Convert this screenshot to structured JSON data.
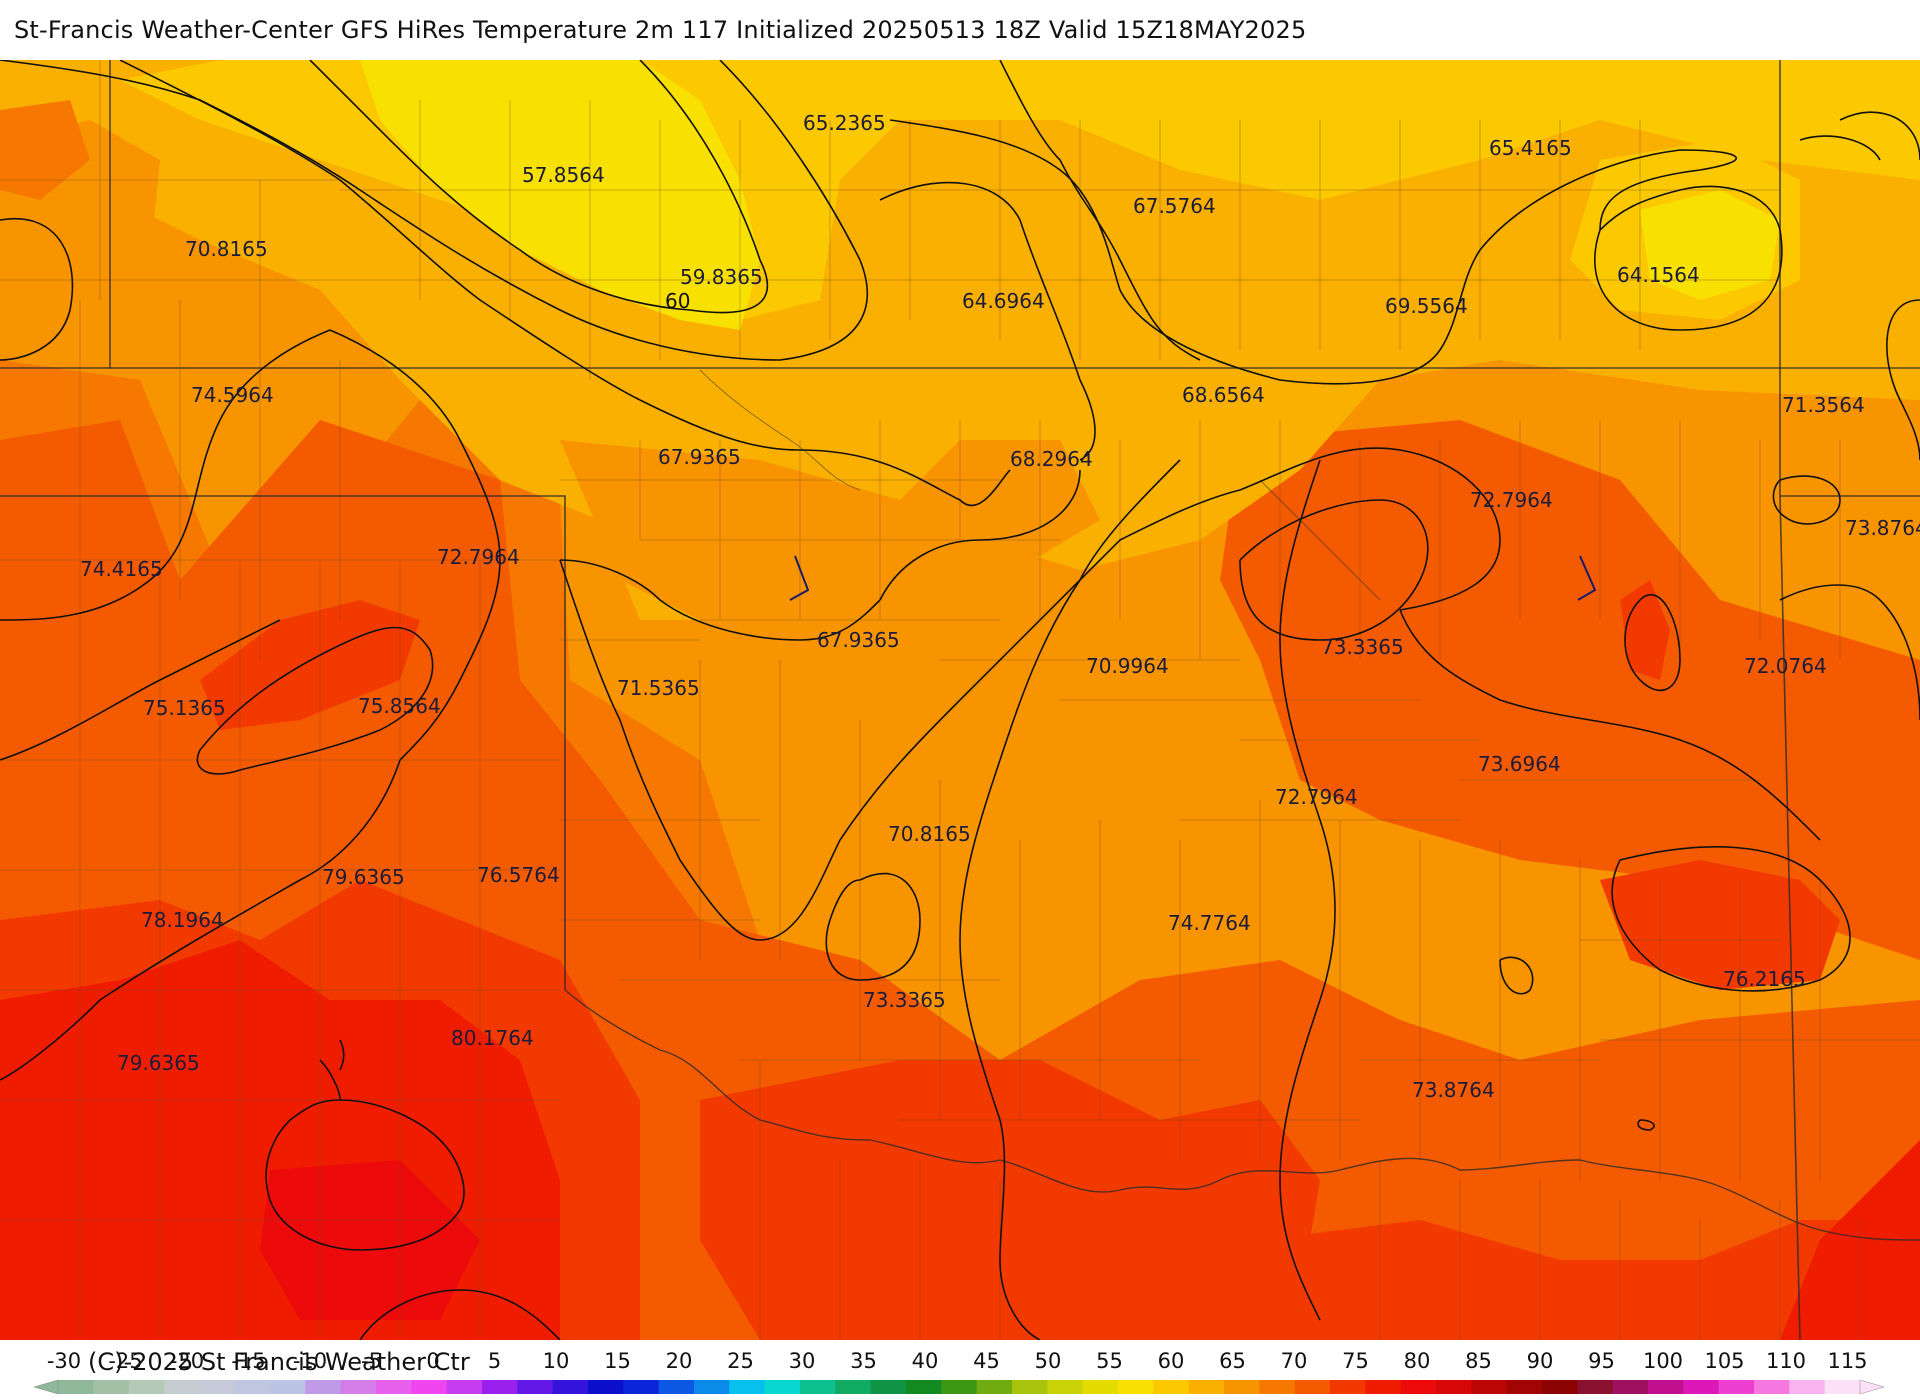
{
  "title": "St-Francis Weather-Center GFS HiRes Temperature 2m  117 Initialized 20250513 18Z Valid 15Z18MAY2025",
  "copyright": "(C)-2025 St Francis Weather Ctr",
  "map": {
    "contour_label": "60",
    "point_values": [
      {
        "id": "p1",
        "value": "57.8564"
      },
      {
        "id": "p2",
        "value": "65.2365"
      },
      {
        "id": "p3",
        "value": "65.4165"
      },
      {
        "id": "p4",
        "value": "70.8165"
      },
      {
        "id": "p5",
        "value": "67.5764"
      },
      {
        "id": "p6",
        "value": "59.8365"
      },
      {
        "id": "p7",
        "value": "64.6964"
      },
      {
        "id": "p8",
        "value": "64.1564"
      },
      {
        "id": "p9",
        "value": "69.5564"
      },
      {
        "id": "p10",
        "value": "74.5964"
      },
      {
        "id": "p11",
        "value": "68.6564"
      },
      {
        "id": "p12",
        "value": "71.3564"
      },
      {
        "id": "p13",
        "value": "67.9365"
      },
      {
        "id": "p14",
        "value": "68.2964"
      },
      {
        "id": "p15",
        "value": "72.7964"
      },
      {
        "id": "p16",
        "value": "73.8764"
      },
      {
        "id": "p17",
        "value": "74.4165"
      },
      {
        "id": "p18",
        "value": "72.7964"
      },
      {
        "id": "p19",
        "value": "67.9365"
      },
      {
        "id": "p20",
        "value": "73.3365"
      },
      {
        "id": "p21",
        "value": "70.9964"
      },
      {
        "id": "p22",
        "value": "72.0764"
      },
      {
        "id": "p23",
        "value": "71.5365"
      },
      {
        "id": "p24",
        "value": "75.1365"
      },
      {
        "id": "p25",
        "value": "75.8564"
      },
      {
        "id": "p26",
        "value": "73.6964"
      },
      {
        "id": "p27",
        "value": "72.7964"
      },
      {
        "id": "p28",
        "value": "70.8165"
      },
      {
        "id": "p29",
        "value": "79.6365"
      },
      {
        "id": "p30",
        "value": "76.5764"
      },
      {
        "id": "p31",
        "value": "78.1964"
      },
      {
        "id": "p32",
        "value": "74.7764"
      },
      {
        "id": "p33",
        "value": "76.2165"
      },
      {
        "id": "p34",
        "value": "73.3365"
      },
      {
        "id": "p35",
        "value": "80.1764"
      },
      {
        "id": "p36",
        "value": "79.6365"
      },
      {
        "id": "p37",
        "value": "73.8764"
      }
    ]
  },
  "legend": {
    "tick_labels": [
      "-30",
      "-25",
      "-20",
      "-15",
      "-10",
      "-5",
      "0",
      "5",
      "10",
      "15",
      "20",
      "25",
      "30",
      "35",
      "40",
      "45",
      "50",
      "55",
      "60",
      "65",
      "70",
      "75",
      "80",
      "85",
      "90",
      "95",
      "100",
      "105",
      "110",
      "115"
    ],
    "colors": [
      "#8fb79a",
      "#a2c0a6",
      "#b4c9b6",
      "#c4ccd0",
      "#c6cad8",
      "#bec6e0",
      "#bcc4e6",
      "#c09ae6",
      "#d47ce8",
      "#e860ee",
      "#f046f0",
      "#c83cf0",
      "#9a20ee",
      "#6418e8",
      "#3414dc",
      "#0c10cc",
      "#0a26d8",
      "#0c58e4",
      "#0c8aea",
      "#08c0ee",
      "#08d8d0",
      "#0cc090",
      "#10aa60",
      "#0e9444",
      "#128a20",
      "#3c9814",
      "#70ac10",
      "#a8c40c",
      "#cad208",
      "#e4dc00",
      "#f8e000",
      "#fcc800",
      "#fab000",
      "#f89400",
      "#f67800",
      "#f45a00",
      "#f23a00",
      "#f01c00",
      "#ec0a0a",
      "#d80808",
      "#bc0606",
      "#a20404",
      "#8c0202",
      "#8a1030",
      "#a01060",
      "#c01090",
      "#dc18b8",
      "#ee40d0",
      "#f478e0",
      "#f8b4ee",
      "#fce0f8"
    ]
  }
}
